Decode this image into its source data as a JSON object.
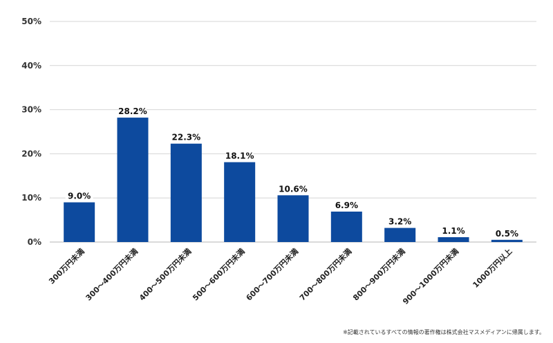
{
  "chart_data": {
    "type": "bar",
    "categories": [
      "300万円未満",
      "300～400万円未満",
      "400～500万円未満",
      "500～600万円未満",
      "600～700万円未満",
      "700～800万円未満",
      "800～900万円未満",
      "900～1000万円未満",
      "1000万円以上"
    ],
    "values": [
      9.0,
      28.2,
      22.3,
      18.1,
      10.6,
      6.9,
      3.2,
      1.1,
      0.5
    ],
    "value_labels": [
      "9.0%",
      "28.2%",
      "22.3%",
      "18.1%",
      "10.6%",
      "6.9%",
      "3.2%",
      "1.1%",
      "0.5%"
    ],
    "ylim": [
      0,
      50
    ],
    "yticks": [
      0,
      10,
      20,
      30,
      40,
      50
    ],
    "ytick_labels": [
      "0%",
      "10%",
      "20%",
      "30%",
      "40%",
      "50%"
    ],
    "grid": true,
    "bar_color": "#0d4a9e",
    "title": "",
    "xlabel": "",
    "ylabel": ""
  },
  "footnote": "※記載されているすべての情報の著作権は株式会社マスメディアンに帰属します。"
}
